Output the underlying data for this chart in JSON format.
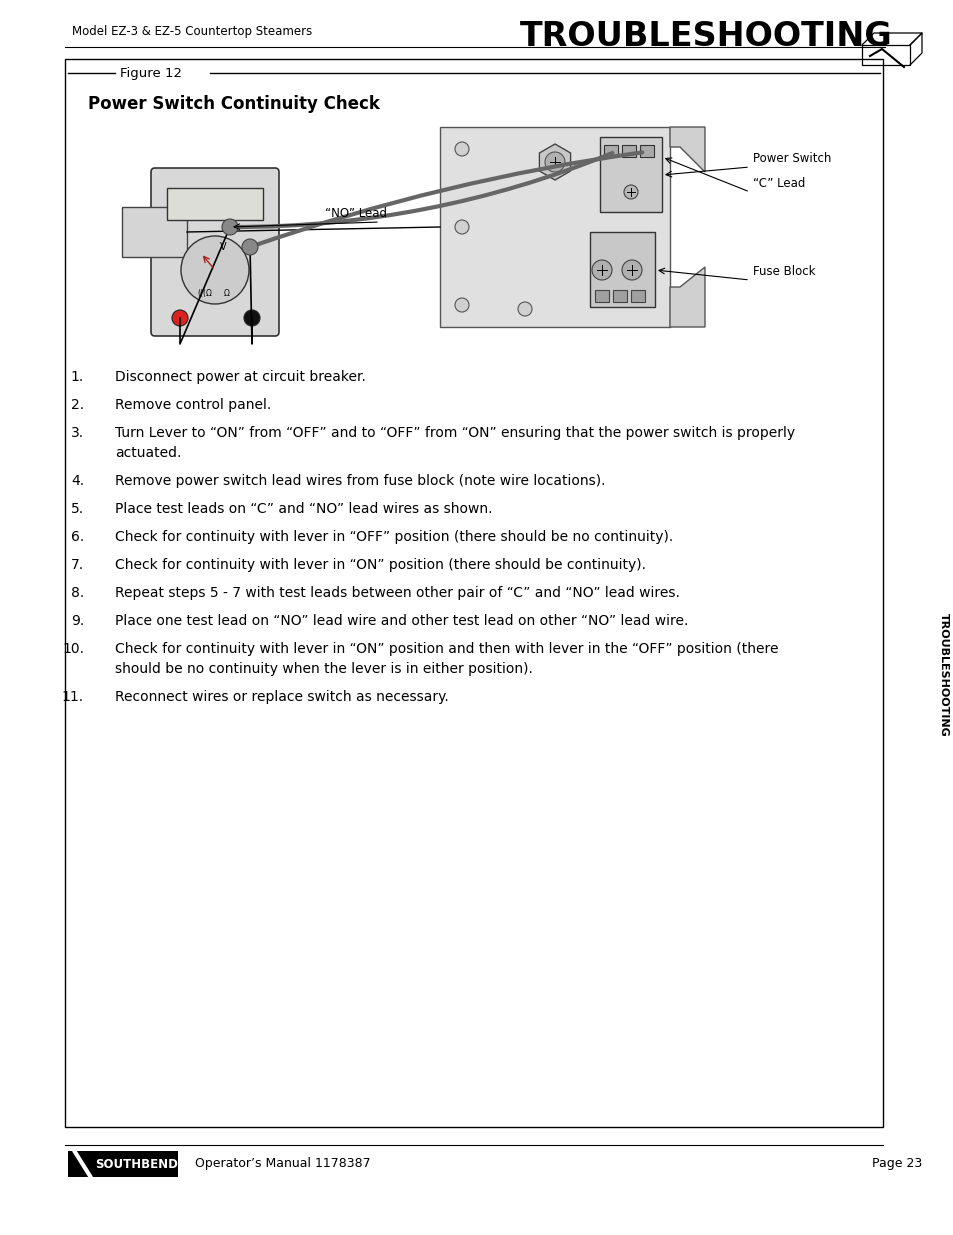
{
  "page_bg": "#ffffff",
  "header_left": "Model EZ-3 & EZ-5 Countertop Steamers",
  "header_right": "Troubleshooting",
  "figure_label": "Figure 12",
  "figure_title": "Power Switch Continuity Check",
  "sidebar_text": "TROUBLESHOOTING",
  "footer_left_logo": "SOUTHBEND",
  "footer_center": "Operator’s Manual 1178387",
  "footer_right": "Page 23",
  "instructions": [
    {
      "num": "1.",
      "text": "Disconnect power at circuit breaker.",
      "wrap": false
    },
    {
      "num": "2.",
      "text": "Remove control panel.",
      "wrap": false
    },
    {
      "num": "3.",
      "text": "Turn Lever to “ON” from “OFF” and to “OFF” from “ON” ensuring that the power switch is properly\nactuated.",
      "wrap": true
    },
    {
      "num": "4.",
      "text": "Remove power switch lead wires from fuse block (note wire locations).",
      "wrap": false
    },
    {
      "num": "5.",
      "text": "Place test leads on “C” and “NO” lead wires as shown.",
      "wrap": false
    },
    {
      "num": "6.",
      "text": "Check for continuity with lever in “OFF” position (there should be no continuity).",
      "wrap": false
    },
    {
      "num": "7.",
      "text": "Check for continuity with lever in “ON” position (there should be continuity).",
      "wrap": false
    },
    {
      "num": "8.",
      "text": "Repeat steps 5 - 7 with test leads between other pair of “C” and “NO” lead wires.",
      "wrap": false
    },
    {
      "num": "9.",
      "text": "Place one test lead on “NO” lead wire and other test lead on other “NO” lead wire.",
      "wrap": false
    },
    {
      "num": "10.",
      "text": "Check for continuity with lever in “ON” position and then with lever in the “OFF” position (there\nshould be no continuity when the lever is in either position).",
      "wrap": true
    },
    {
      "num": "11.",
      "text": "Reconnect wires or replace switch as necessary.",
      "wrap": false
    }
  ],
  "diagram_labels": {
    "power_switch": "Power Switch",
    "no_lead": "“NO” Lead",
    "c_lead": "“C” Lead",
    "fuse_block": "Fuse Block"
  }
}
